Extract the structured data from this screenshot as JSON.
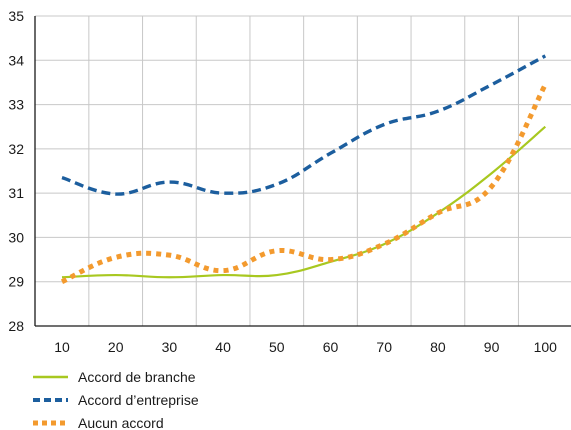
{
  "chart_data": {
    "type": "line",
    "x": [
      10,
      20,
      30,
      40,
      50,
      60,
      70,
      80,
      90,
      100
    ],
    "ylim": [
      28,
      35
    ],
    "yticks": [
      28,
      29,
      30,
      31,
      32,
      33,
      34,
      35
    ],
    "xticks": [
      10,
      20,
      30,
      40,
      50,
      60,
      70,
      80,
      90,
      100
    ],
    "grid": true,
    "legend_position": "bottom-left",
    "series": [
      {
        "name": "Accord de branche",
        "color": "#a8c820",
        "style": "solid",
        "values": [
          29.1,
          29.15,
          29.1,
          29.15,
          29.15,
          29.45,
          29.85,
          30.55,
          31.45,
          32.5
        ]
      },
      {
        "name": "Accord d’entreprise",
        "color": "#1c5e9e",
        "style": "dashed",
        "values": [
          31.35,
          30.98,
          31.25,
          31.0,
          31.2,
          31.9,
          32.55,
          32.85,
          33.45,
          34.1
        ]
      },
      {
        "name": "Aucun accord",
        "color": "#f39a2e",
        "style": "dotted",
        "values": [
          29.0,
          29.55,
          29.6,
          29.25,
          29.7,
          29.5,
          29.85,
          30.55,
          31.15,
          33.45
        ]
      }
    ]
  }
}
